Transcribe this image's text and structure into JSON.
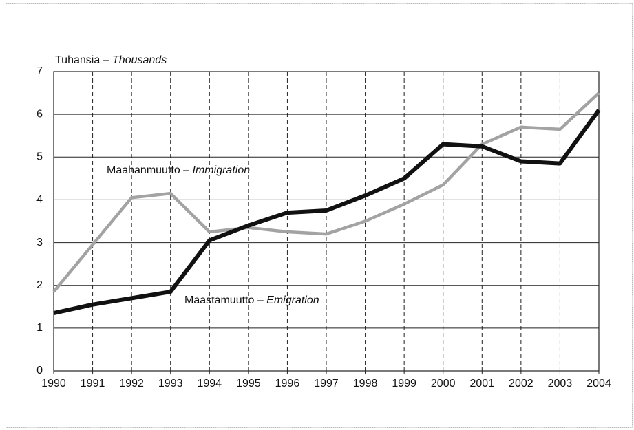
{
  "chart_data": {
    "type": "line",
    "y_label": {
      "fi": "Tuhansia –",
      "en": "Thousands"
    },
    "x": [
      1990,
      1991,
      1992,
      1993,
      1994,
      1995,
      1996,
      1997,
      1998,
      1999,
      2000,
      2001,
      2002,
      2003,
      2004
    ],
    "series": [
      {
        "name": "Maahanmuutto – Immigration",
        "color": "#a3a3a3",
        "values": [
          1.85,
          2.95,
          4.05,
          4.15,
          3.25,
          3.35,
          3.25,
          3.2,
          3.5,
          3.9,
          4.35,
          5.3,
          5.7,
          5.65,
          6.5
        ]
      },
      {
        "name": "Maastamuutto – Emigration",
        "color": "#111111",
        "values": [
          1.35,
          1.55,
          1.7,
          1.85,
          3.05,
          3.4,
          3.7,
          3.75,
          4.1,
          4.5,
          5.3,
          5.25,
          4.9,
          4.85,
          6.1
        ]
      }
    ],
    "xlim": [
      1990,
      2004
    ],
    "xticks": [
      1990,
      1991,
      1992,
      1993,
      1994,
      1995,
      1996,
      1997,
      1998,
      1999,
      2000,
      2001,
      2002,
      2003,
      2004
    ],
    "ylim": [
      0,
      7
    ],
    "yticks": [
      0,
      1,
      2,
      3,
      4,
      5,
      6,
      7
    ],
    "grid": true
  }
}
